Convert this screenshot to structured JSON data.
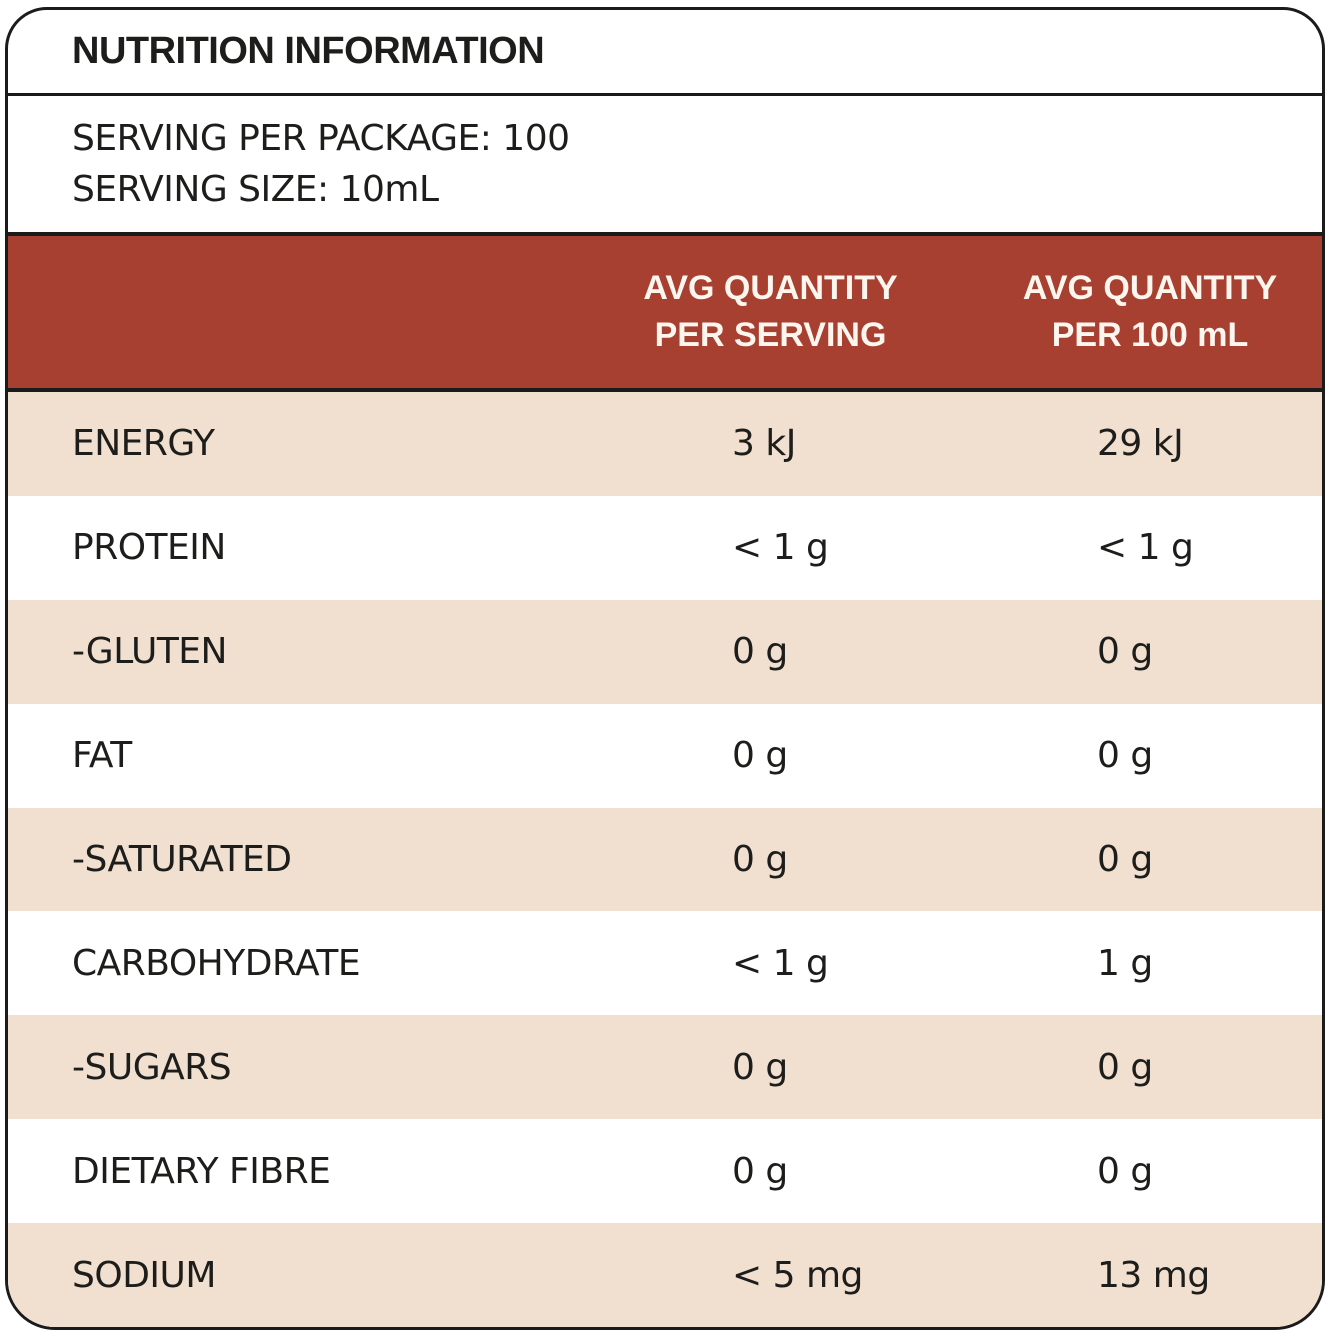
{
  "title": "NUTRITION INFORMATION",
  "serving_info": {
    "line1": "SERVING PER PACKAGE: 100",
    "line2": "SERVING SIZE: 10mL"
  },
  "table": {
    "columns": [
      {
        "line1": "AVG QUANTITY",
        "line2": "PER SERVING"
      },
      {
        "line1": "AVG QUANTITY",
        "line2": "PER 100 mL"
      }
    ],
    "rows": [
      {
        "label": "ENERGY",
        "per_serving": "3 kJ",
        "per_100ml": "29 kJ"
      },
      {
        "label": "PROTEIN",
        "per_serving": "< 1 g",
        "per_100ml": "< 1 g"
      },
      {
        "label": "-GLUTEN",
        "per_serving": "0 g",
        "per_100ml": "0 g"
      },
      {
        "label": "FAT",
        "per_serving": "0 g",
        "per_100ml": "0 g"
      },
      {
        "label": "-SATURATED",
        "per_serving": "0 g",
        "per_100ml": "0 g"
      },
      {
        "label": "CARBOHYDRATE",
        "per_serving": "< 1 g",
        "per_100ml": "1 g"
      },
      {
        "label": "-SUGARS",
        "per_serving": "0 g",
        "per_100ml": "0 g"
      },
      {
        "label": "DIETARY FIBRE",
        "per_serving": "0 g",
        "per_100ml": "0 g"
      },
      {
        "label": "SODIUM",
        "per_serving": "< 5 mg",
        "per_100ml": "13 mg"
      }
    ]
  },
  "colors": {
    "header_bg": "#A74031",
    "row_alt_bg": "#F1E0CF",
    "row_bg": "#FFFFFF",
    "border": "#1B1B1B",
    "header_text": "#FCF6EE",
    "text": "#1D1D1B"
  }
}
